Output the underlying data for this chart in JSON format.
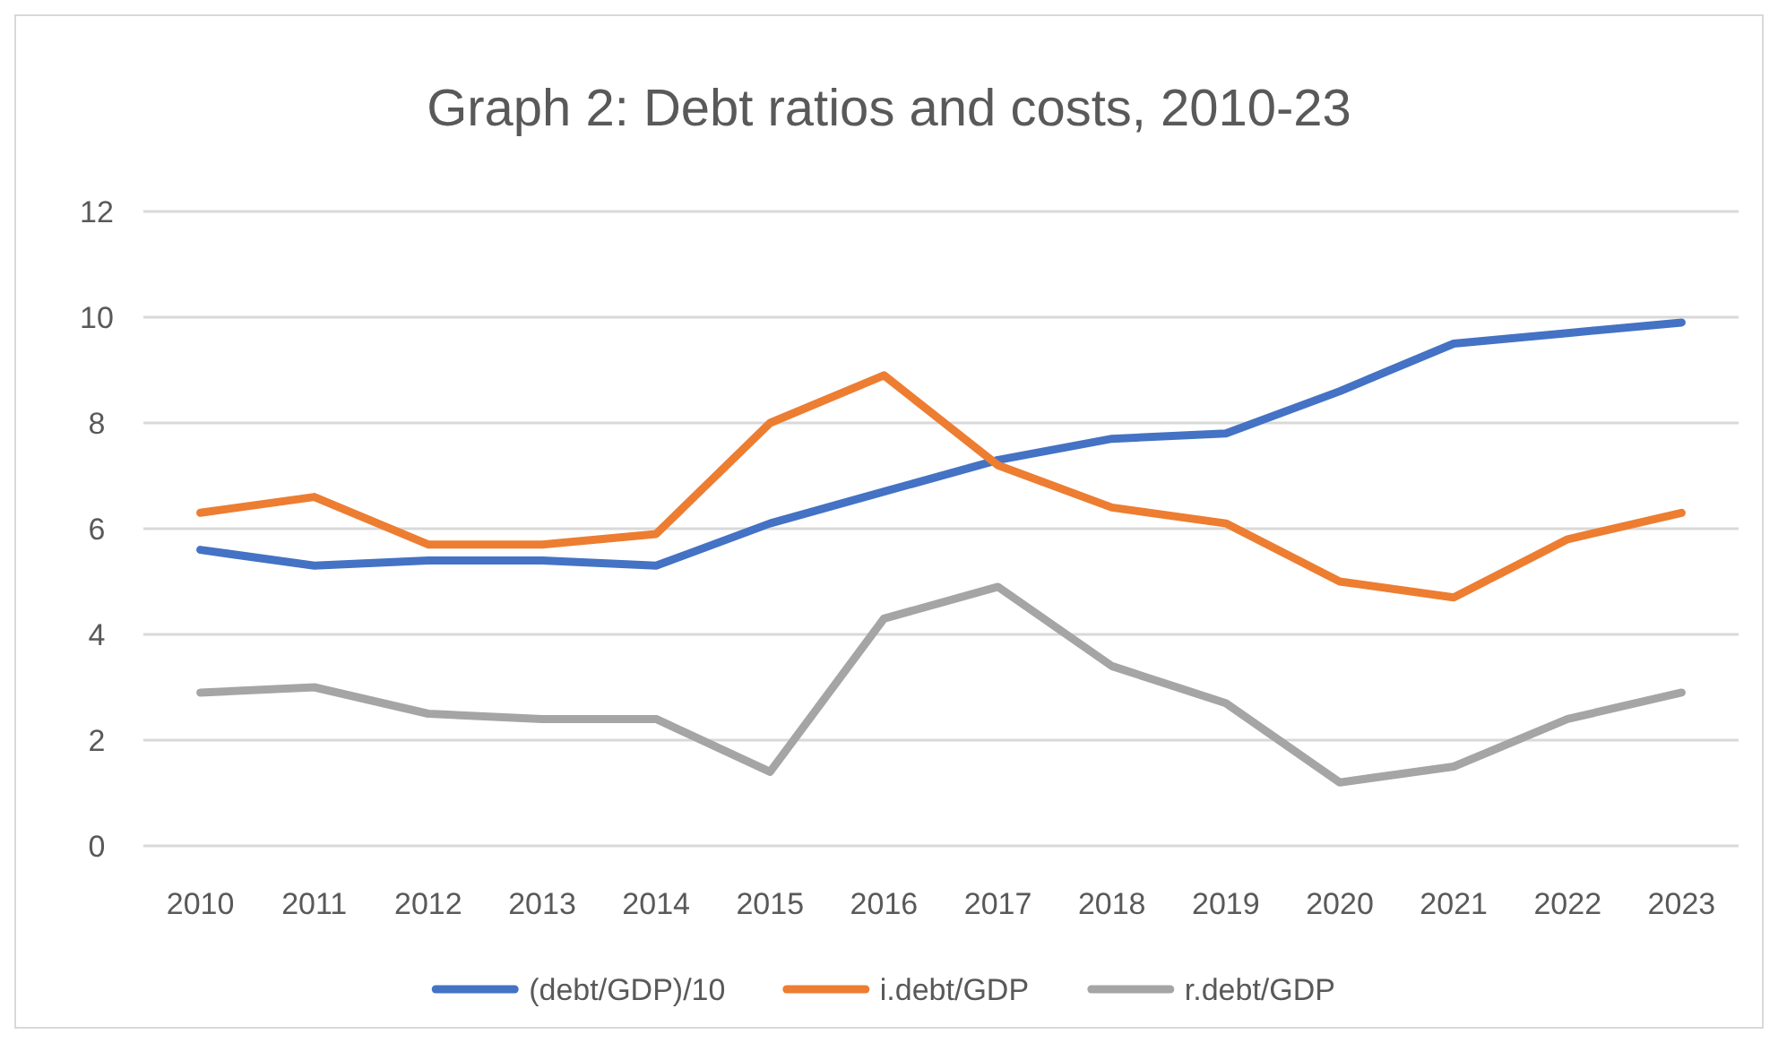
{
  "chart_data": {
    "type": "line",
    "title": "Graph 2: Debt ratios and costs, 2010-23",
    "categories": [
      "2010",
      "2011",
      "2012",
      "2013",
      "2014",
      "2015",
      "2016",
      "2017",
      "2018",
      "2019",
      "2020",
      "2021",
      "2022",
      "2023"
    ],
    "series": [
      {
        "name": "(debt/GDP)/10",
        "color": "#4472c4",
        "values": [
          5.6,
          5.3,
          5.4,
          5.4,
          5.3,
          6.1,
          6.7,
          7.3,
          7.7,
          7.8,
          8.6,
          9.5,
          9.7,
          9.9
        ]
      },
      {
        "name": "i.debt/GDP",
        "color": "#ed7d31",
        "values": [
          6.3,
          6.6,
          5.7,
          5.7,
          5.9,
          8.0,
          8.9,
          7.2,
          6.4,
          6.1,
          5.0,
          4.7,
          5.8,
          6.3
        ]
      },
      {
        "name": "r.debt/GDP",
        "color": "#a5a5a5",
        "values": [
          2.9,
          3.0,
          2.5,
          2.4,
          2.4,
          1.4,
          4.3,
          4.9,
          3.4,
          2.7,
          1.2,
          1.5,
          2.4,
          2.9
        ]
      }
    ],
    "ylim": [
      0,
      12
    ],
    "yticks": [
      0,
      2,
      4,
      6,
      8,
      10,
      12
    ],
    "grid": "y",
    "legend": "bottom",
    "marker": "none",
    "line_style": "solid"
  }
}
